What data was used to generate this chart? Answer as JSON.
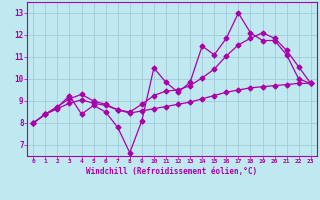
{
  "bg_color": "#c0e8f0",
  "grid_color": "#a0ccd8",
  "line_color": "#aa00aa",
  "xlabel": "Windchill (Refroidissement éolien,°C)",
  "xlim_min": -0.5,
  "xlim_max": 23.5,
  "ylim_min": 6.5,
  "ylim_max": 13.5,
  "xticks": [
    0,
    1,
    2,
    3,
    4,
    5,
    6,
    7,
    8,
    9,
    10,
    11,
    12,
    13,
    14,
    15,
    16,
    17,
    18,
    19,
    20,
    21,
    22,
    23
  ],
  "yticks": [
    7,
    8,
    9,
    10,
    11,
    12,
    13
  ],
  "line_jagged_x": [
    0,
    1,
    2,
    3,
    4,
    5,
    6,
    7,
    8,
    9,
    10,
    11,
    12,
    13,
    14,
    15,
    16,
    17,
    18,
    19,
    20,
    21,
    22,
    23
  ],
  "line_jagged_y": [
    8.0,
    8.4,
    8.7,
    9.25,
    8.4,
    8.8,
    8.5,
    7.8,
    6.65,
    8.1,
    10.5,
    9.85,
    9.4,
    9.85,
    11.5,
    11.1,
    11.85,
    13.0,
    12.1,
    11.75,
    11.75,
    11.1,
    10.0,
    9.8
  ],
  "line_linear_x": [
    0,
    1,
    2,
    3,
    4,
    5,
    6,
    7,
    8,
    9,
    10,
    11,
    12,
    13,
    14,
    15,
    16,
    17,
    18,
    19,
    20,
    21,
    22,
    23
  ],
  "line_linear_y": [
    8.0,
    8.4,
    8.65,
    8.9,
    9.05,
    8.9,
    8.8,
    8.6,
    8.45,
    8.55,
    8.65,
    8.75,
    8.85,
    8.95,
    9.1,
    9.25,
    9.4,
    9.5,
    9.6,
    9.65,
    9.7,
    9.75,
    9.8,
    9.8
  ],
  "line_middle_x": [
    0,
    1,
    2,
    3,
    4,
    5,
    6,
    7,
    8,
    9,
    10,
    11,
    12,
    13,
    14,
    15,
    16,
    17,
    18,
    19,
    20,
    21,
    22,
    23
  ],
  "line_middle_y": [
    8.0,
    8.4,
    8.75,
    9.1,
    9.3,
    9.0,
    8.85,
    8.6,
    8.5,
    8.85,
    9.25,
    9.45,
    9.5,
    9.7,
    10.05,
    10.45,
    11.05,
    11.55,
    11.85,
    12.1,
    11.85,
    11.3,
    10.55,
    9.8
  ],
  "markersize": 2.5,
  "linewidth": 0.9
}
